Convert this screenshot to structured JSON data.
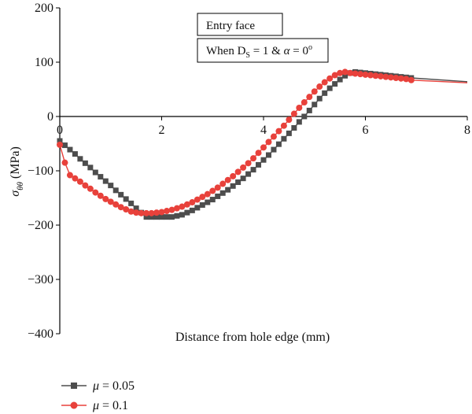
{
  "chart_data": {
    "type": "line",
    "xlabel": "Distance from hole edge (mm)",
    "ylabel": {
      "sigma": "σ",
      "subscript": "θθ",
      "unit": " (MPa)"
    },
    "xlim": [
      0,
      8
    ],
    "ylim": [
      -400,
      200
    ],
    "xticks": [
      0,
      2,
      4,
      6,
      8
    ],
    "yticks": [
      200,
      100,
      0,
      -100,
      -200,
      -300,
      -400
    ],
    "ytick_labels": [
      "200",
      "100",
      "0",
      "−100",
      "−200",
      "−300",
      "−400"
    ],
    "grid": false,
    "annotations": {
      "box1": "Entry face",
      "box2": {
        "prefix": "When D",
        "sub": "S",
        "mid": " = 1 & ",
        "alpha": "α",
        "suffix": " = 0",
        "sup": "o"
      }
    },
    "legend_position": "bottom-left",
    "series": [
      {
        "name": "μ = 0.05",
        "name_parts": {
          "mu": "μ",
          "rest": " = 0.05"
        },
        "color": "#4d4d4d",
        "marker": "square",
        "x": [
          0.0,
          0.1,
          0.2,
          0.3,
          0.4,
          0.5,
          0.6,
          0.7,
          0.8,
          0.9,
          1.0,
          1.1,
          1.2,
          1.3,
          1.4,
          1.5,
          1.6,
          1.7,
          1.8,
          1.9,
          2.0,
          2.1,
          2.2,
          2.3,
          2.4,
          2.5,
          2.6,
          2.7,
          2.8,
          2.9,
          3.0,
          3.1,
          3.2,
          3.3,
          3.4,
          3.5,
          3.6,
          3.7,
          3.8,
          3.9,
          4.0,
          4.1,
          4.2,
          4.3,
          4.4,
          4.5,
          4.6,
          4.7,
          4.8,
          4.9,
          5.0,
          5.1,
          5.2,
          5.3,
          5.4,
          5.5,
          5.6,
          5.7,
          5.8,
          5.9,
          6.0,
          6.1,
          6.2,
          6.3,
          6.4,
          6.5,
          6.6,
          6.7,
          6.8,
          6.9,
          8.0
        ],
        "y": [
          -45,
          -53,
          -61,
          -69,
          -78,
          -86,
          -94,
          -103,
          -111,
          -119,
          -127,
          -136,
          -144,
          -152,
          -160,
          -169,
          -177,
          -185,
          -185,
          -185,
          -185,
          -185,
          -185,
          -183,
          -181,
          -177,
          -173,
          -168,
          -163,
          -158,
          -153,
          -147,
          -141,
          -135,
          -128,
          -121,
          -114,
          -106,
          -98,
          -89,
          -80,
          -71,
          -61,
          -51,
          -41,
          -31,
          -21,
          -10,
          0,
          11,
          22,
          33,
          43,
          52,
          60,
          68,
          75,
          80,
          82,
          81,
          80,
          79,
          78,
          77,
          76,
          75,
          74,
          73,
          72,
          71,
          64
        ]
      },
      {
        "name": "μ = 0.1",
        "name_parts": {
          "mu": "μ",
          "rest": " = 0.1"
        },
        "color": "#e8413b",
        "marker": "circle",
        "x": [
          0.0,
          0.1,
          0.2,
          0.3,
          0.4,
          0.5,
          0.6,
          0.7,
          0.8,
          0.9,
          1.0,
          1.1,
          1.2,
          1.3,
          1.4,
          1.5,
          1.6,
          1.7,
          1.8,
          1.9,
          2.0,
          2.1,
          2.2,
          2.3,
          2.4,
          2.5,
          2.6,
          2.7,
          2.8,
          2.9,
          3.0,
          3.1,
          3.2,
          3.3,
          3.4,
          3.5,
          3.6,
          3.7,
          3.8,
          3.9,
          4.0,
          4.1,
          4.2,
          4.3,
          4.4,
          4.5,
          4.6,
          4.7,
          4.8,
          4.9,
          5.0,
          5.1,
          5.2,
          5.3,
          5.4,
          5.5,
          5.6,
          5.7,
          5.8,
          5.9,
          6.0,
          6.1,
          6.2,
          6.3,
          6.4,
          6.5,
          6.6,
          6.7,
          6.8,
          6.9,
          8.0
        ],
        "y": [
          -52,
          -85,
          -108,
          -114,
          -120,
          -127,
          -133,
          -140,
          -146,
          -152,
          -157,
          -162,
          -167,
          -171,
          -175,
          -177,
          -178,
          -178,
          -178,
          -177,
          -176,
          -174,
          -172,
          -169,
          -166,
          -162,
          -158,
          -153,
          -148,
          -143,
          -137,
          -131,
          -124,
          -117,
          -110,
          -102,
          -94,
          -86,
          -77,
          -67,
          -57,
          -47,
          -37,
          -27,
          -17,
          -6,
          5,
          16,
          26,
          36,
          46,
          55,
          63,
          70,
          76,
          80,
          82,
          80,
          79,
          78,
          77,
          76,
          75,
          74,
          73,
          72,
          71,
          70,
          69,
          67,
          62
        ]
      }
    ]
  }
}
